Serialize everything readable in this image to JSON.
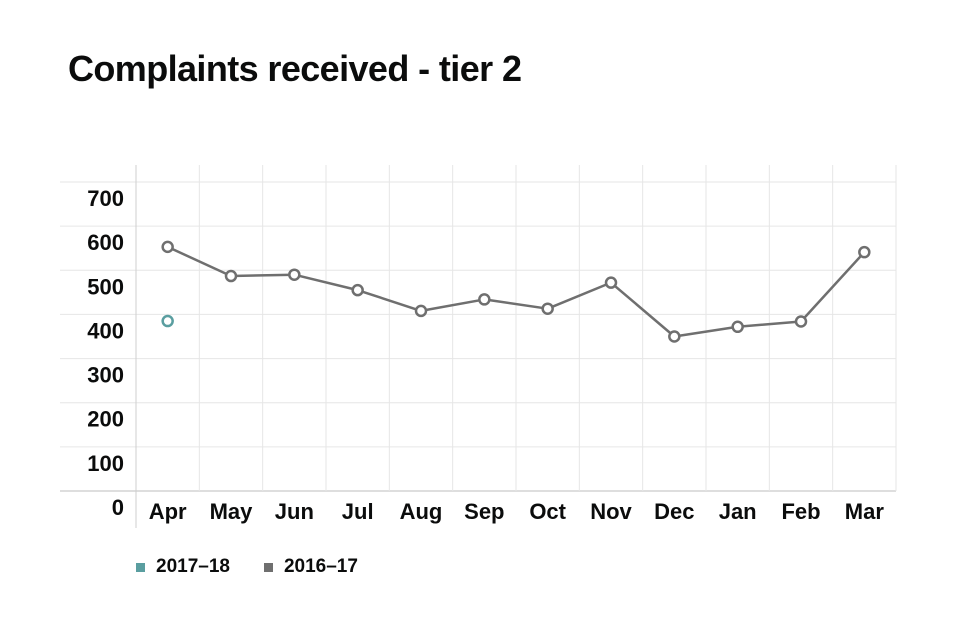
{
  "chart_data": {
    "type": "line",
    "title": "Complaints received - tier 2",
    "categories": [
      "Apr",
      "May",
      "Jun",
      "Jul",
      "Aug",
      "Sep",
      "Oct",
      "Nov",
      "Dec",
      "Jan",
      "Feb",
      "Mar"
    ],
    "ylim": [
      0,
      700
    ],
    "yticks": [
      "0",
      "100",
      "200",
      "300",
      "400",
      "500",
      "600",
      "700"
    ],
    "grid": true,
    "legend_position": "bottom-left",
    "series": [
      {
        "name": "2017–18",
        "color": "#5a9ea0",
        "values": [
          385,
          null,
          null,
          null,
          null,
          null,
          null,
          null,
          null,
          null,
          null,
          null
        ]
      },
      {
        "name": "2016–17",
        "color": "#6f6f6f",
        "values": [
          553,
          487,
          490,
          455,
          408,
          434,
          413,
          472,
          350,
          372,
          384,
          541
        ]
      }
    ]
  }
}
